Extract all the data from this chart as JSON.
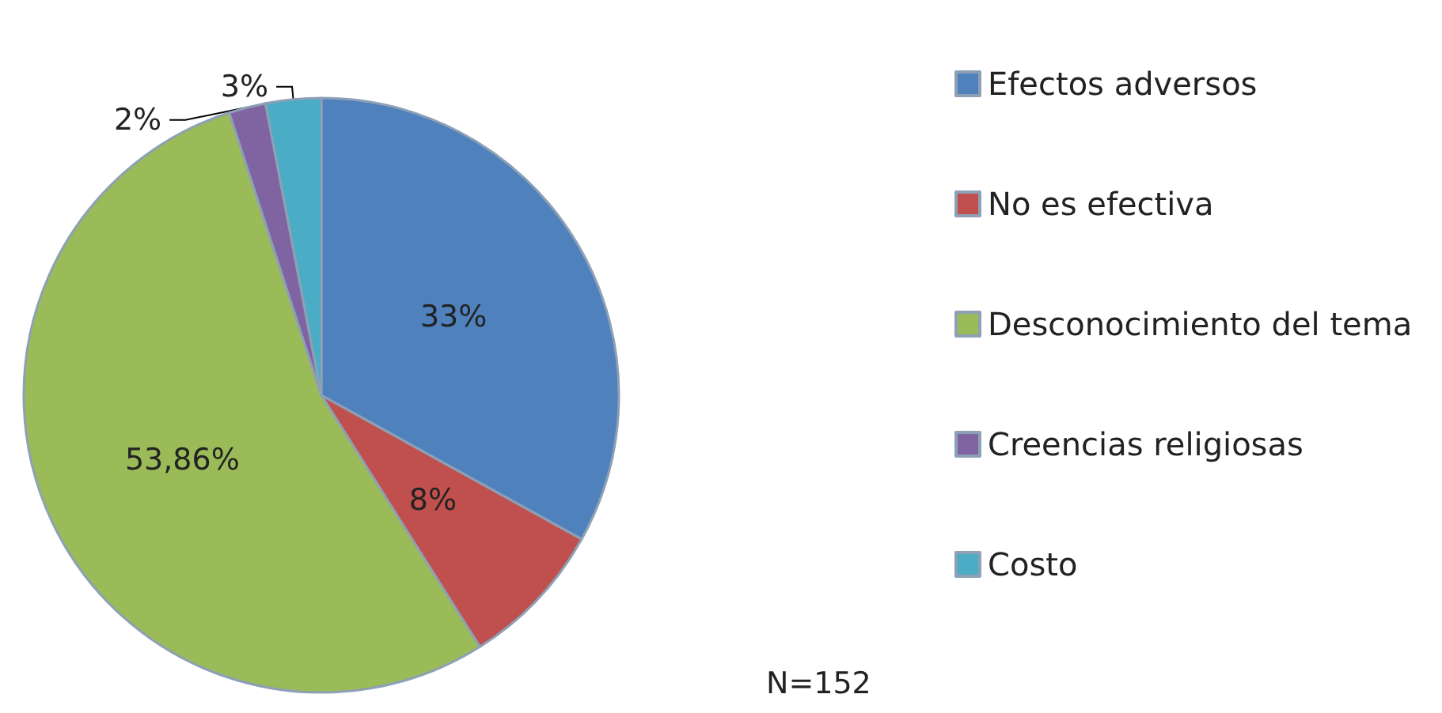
{
  "chart_data": {
    "type": "pie",
    "categories": [
      "Efectos adversos",
      "No es efectiva",
      "Desconocimiento del tema",
      "Creencias religiosas",
      "Costo"
    ],
    "values": [
      33,
      8,
      53.86,
      2,
      3
    ],
    "value_labels": [
      "33%",
      "8%",
      "53,86%",
      "2%",
      "3%"
    ],
    "colors": [
      "#4f81bd",
      "#c0504d",
      "#9bbb59",
      "#8064a2",
      "#4bacc6"
    ],
    "legend": "right",
    "annotations": [
      "N=152"
    ]
  }
}
